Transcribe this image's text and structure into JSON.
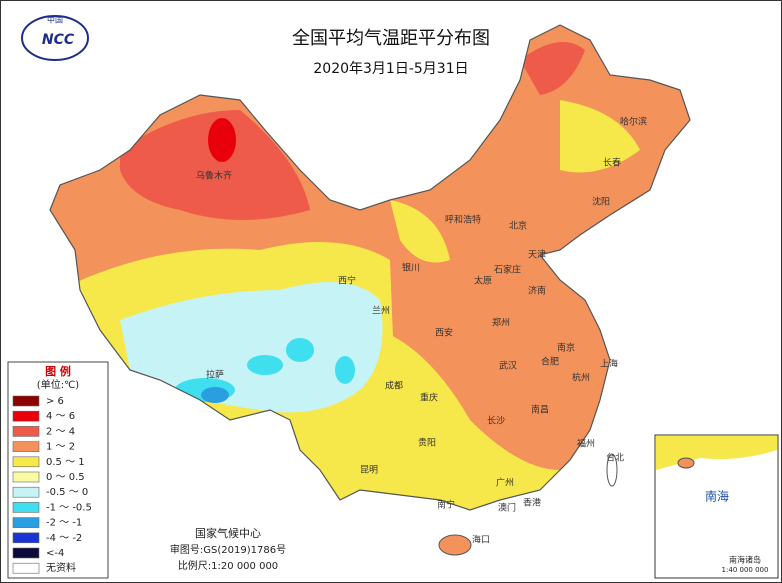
{
  "header": {
    "title": "全国平均气温距平分布图",
    "subtitle": "2020年3月1日-5月31日",
    "logo_cn": "中国",
    "logo_en": "NCC"
  },
  "legend": {
    "title": "图 例",
    "unit": "(单位:℃)",
    "items": [
      {
        "label": "> 6",
        "color": "#8c0000"
      },
      {
        "label": "4 ～ 6",
        "color": "#e8000b"
      },
      {
        "label": "2 ～ 4",
        "color": "#ee5b4b"
      },
      {
        "label": "1 ～ 2",
        "color": "#f3925a"
      },
      {
        "label": "0.5 ～ 1",
        "color": "#f6e84a"
      },
      {
        "label": "0 ～ 0.5",
        "color": "#fafaa4"
      },
      {
        "label": "-0.5 ～ 0",
        "color": "#c6f3f6"
      },
      {
        "label": "-1 ～ -0.5",
        "color": "#3fdff0"
      },
      {
        "label": "-2 ～ -1",
        "color": "#2a9ee0"
      },
      {
        "label": "-4 ～ -2",
        "color": "#1a34d6"
      },
      {
        "label": "<-4",
        "color": "#0b0b3a"
      },
      {
        "label": "无资料",
        "color": "#ffffff"
      }
    ]
  },
  "footer": {
    "org": "国家气候中心",
    "approval": "审图号:GS(2019)1786号",
    "scale": "比例尺:1:20 000 000"
  },
  "inset": {
    "sea": "南海",
    "islands": "南海诸岛",
    "scale": "1:40 000 000"
  },
  "cities": [
    "乌鲁木齐",
    "哈尔滨",
    "长春",
    "沈阳",
    "呼和浩特",
    "北京",
    "天津",
    "石家庄",
    "太原",
    "济南",
    "银川",
    "西宁",
    "兰州",
    "西安",
    "郑州",
    "合肥",
    "南京",
    "上海",
    "杭州",
    "武汉",
    "成都",
    "重庆",
    "长沙",
    "南昌",
    "福州",
    "贵阳",
    "昆明",
    "南宁",
    "广州",
    "澳门",
    "香港",
    "海口",
    "台北",
    "拉萨"
  ]
}
